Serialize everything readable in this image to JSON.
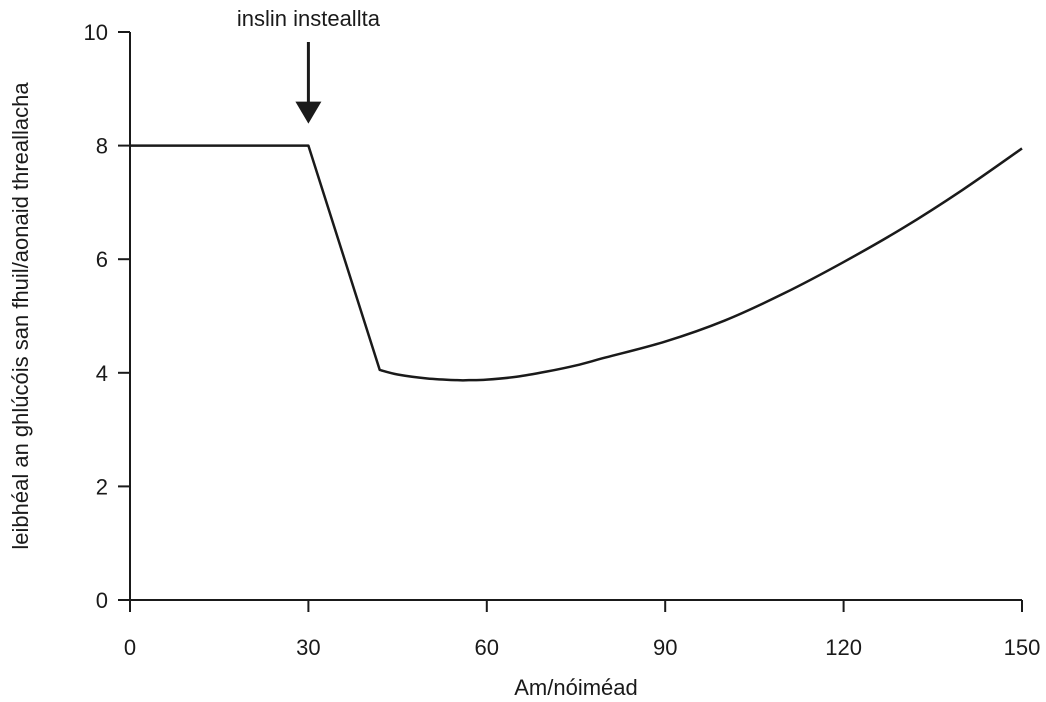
{
  "chart_data": {
    "type": "line",
    "xlabel": "Am/nóiméad",
    "ylabel": "leibhéal an ghlúcóis san fhuil/aonaid threallacha",
    "xlim": [
      0,
      150
    ],
    "ylim": [
      0,
      10
    ],
    "x_ticks": [
      0,
      30,
      60,
      90,
      120,
      150
    ],
    "y_ticks": [
      0,
      2,
      4,
      6,
      8,
      10
    ],
    "grid": false,
    "series": [
      {
        "x": [
          0,
          30,
          42,
          45,
          50,
          55,
          57,
          60,
          65,
          70,
          75,
          80,
          90,
          100,
          110,
          120,
          130,
          140,
          150
        ],
        "y": [
          8.0,
          8.0,
          4.05,
          3.97,
          3.9,
          3.87,
          3.87,
          3.88,
          3.93,
          4.02,
          4.13,
          4.27,
          4.55,
          4.92,
          5.4,
          5.95,
          6.55,
          7.22,
          7.95
        ]
      }
    ],
    "annotations": [
      {
        "text": "inslin insteallta",
        "x": 30,
        "y": 8.0
      }
    ],
    "colors": {
      "line": "#1a1a1a",
      "axis": "#1a1a1a"
    }
  }
}
